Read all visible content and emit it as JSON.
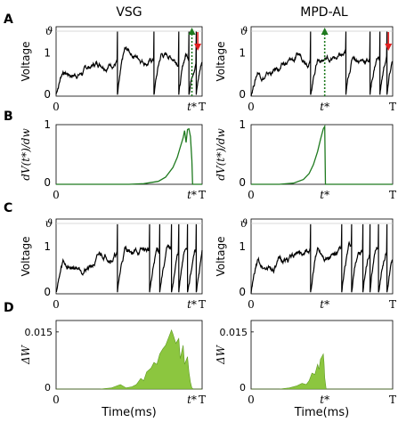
{
  "figure": {
    "column_titles": [
      "VSG",
      "MPD-AL"
    ],
    "panel_letters": [
      "A",
      "B",
      "C",
      "D"
    ],
    "colors": {
      "trace": "#000000",
      "green": "#1f7a1f",
      "fill": "#8cc63f",
      "arrow_red": "#e02020",
      "threshold_grid": "#cccccc"
    }
  },
  "chart_data": [
    {
      "id": "A-left",
      "type": "line",
      "panel": "A",
      "column": "VSG",
      "ylabel": "Voltage",
      "yticks": [
        "0",
        "1"
      ],
      "threshold_label": "ϑ",
      "xticks": [
        "0",
        "t*",
        "T"
      ],
      "xlim": [
        0,
        1
      ],
      "ylim": [
        0,
        1
      ],
      "threshold": 0.93,
      "spikes": [
        0.42,
        0.67,
        0.84,
        0.91,
        0.96
      ],
      "t_star": 0.93,
      "markers": {
        "green_arrow_at": 0.93,
        "red_arrow_at": 0.97
      }
    },
    {
      "id": "A-right",
      "type": "line",
      "panel": "A",
      "column": "MPD-AL",
      "ylabel": "Voltage",
      "yticks": [
        "0",
        "1"
      ],
      "threshold_label": "ϑ",
      "xticks": [
        "0",
        "t*",
        "T"
      ],
      "xlim": [
        0,
        1
      ],
      "ylim": [
        0,
        1
      ],
      "threshold": 0.93,
      "spikes": [
        0.42,
        0.67,
        0.84,
        0.91,
        0.96
      ],
      "t_star": 0.52,
      "markers": {
        "green_arrow_at": 0.52,
        "red_arrow_at": 0.97
      }
    },
    {
      "id": "B-left",
      "type": "line",
      "panel": "B",
      "column": "VSG",
      "ylabel": "dV(t*)/dw",
      "yticks": [
        "0",
        "1"
      ],
      "xticks": [
        "0",
        "t*",
        "T"
      ],
      "xlim": [
        0,
        1
      ],
      "ylim": [
        0,
        1
      ],
      "x": [
        0.0,
        0.5,
        0.6,
        0.7,
        0.75,
        0.8,
        0.83,
        0.85,
        0.87,
        0.88,
        0.89,
        0.9,
        0.91,
        0.92,
        0.93,
        0.935,
        1.0
      ],
      "y": [
        0.0,
        0.0,
        0.01,
        0.05,
        0.12,
        0.28,
        0.45,
        0.62,
        0.78,
        0.9,
        0.7,
        0.92,
        0.93,
        0.8,
        0.4,
        0.0,
        0.0
      ]
    },
    {
      "id": "B-right",
      "type": "line",
      "panel": "B",
      "column": "MPD-AL",
      "ylabel": "dV(t*)/dw",
      "yticks": [
        "0",
        "1"
      ],
      "xticks": [
        "0",
        "t*",
        "T"
      ],
      "xlim": [
        0,
        1
      ],
      "ylim": [
        0,
        1
      ],
      "x": [
        0.0,
        0.2,
        0.3,
        0.37,
        0.41,
        0.44,
        0.47,
        0.49,
        0.51,
        0.52,
        0.525,
        1.0
      ],
      "y": [
        0.0,
        0.0,
        0.02,
        0.08,
        0.18,
        0.33,
        0.55,
        0.75,
        0.93,
        0.97,
        0.0,
        0.0
      ]
    },
    {
      "id": "C-left",
      "type": "line",
      "panel": "C",
      "column": "VSG",
      "ylabel": "Voltage",
      "yticks": [
        "0",
        "1"
      ],
      "threshold_label": "ϑ",
      "xticks": [
        "0",
        "t*",
        "T"
      ],
      "xlim": [
        0,
        1
      ],
      "ylim": [
        0,
        1
      ],
      "threshold": 0.93,
      "spikes": [
        0.42,
        0.64,
        0.71,
        0.79,
        0.84,
        0.9,
        0.96
      ]
    },
    {
      "id": "C-right",
      "type": "line",
      "panel": "C",
      "column": "MPD-AL",
      "ylabel": "Voltage",
      "yticks": [
        "0",
        "1"
      ],
      "threshold_label": "ϑ",
      "xticks": [
        "0",
        "t*",
        "T"
      ],
      "xlim": [
        0,
        1
      ],
      "ylim": [
        0,
        1
      ],
      "threshold": 0.93,
      "spikes": [
        0.42,
        0.64,
        0.71,
        0.79,
        0.84,
        0.9,
        0.96
      ]
    },
    {
      "id": "D-left",
      "type": "area",
      "panel": "D",
      "column": "VSG",
      "ylabel": "ΔW",
      "yticks": [
        "0",
        "0.015"
      ],
      "xticks": [
        "0",
        "t*",
        "T"
      ],
      "xlabel": "Time(ms)",
      "xlim": [
        0,
        1
      ],
      "ylim": [
        0,
        0.018
      ],
      "x": [
        0.0,
        0.3,
        0.38,
        0.44,
        0.48,
        0.52,
        0.55,
        0.58,
        0.6,
        0.62,
        0.65,
        0.67,
        0.69,
        0.71,
        0.73,
        0.75,
        0.77,
        0.79,
        0.8,
        0.82,
        0.84,
        0.85,
        0.87,
        0.88,
        0.9,
        0.91,
        0.92,
        0.93,
        0.94,
        1.0
      ],
      "y": [
        0.0,
        0.0,
        0.0003,
        0.0012,
        0.0003,
        0.0006,
        0.0012,
        0.0028,
        0.0022,
        0.0045,
        0.0055,
        0.007,
        0.0065,
        0.0092,
        0.0105,
        0.0115,
        0.0135,
        0.0155,
        0.0145,
        0.012,
        0.0133,
        0.008,
        0.0115,
        0.0065,
        0.0085,
        0.0045,
        0.0018,
        0.0003,
        0.0,
        0.0
      ]
    },
    {
      "id": "D-right",
      "type": "area",
      "panel": "D",
      "column": "MPD-AL",
      "ylabel": "ΔW",
      "yticks": [
        "0",
        "0.015"
      ],
      "xticks": [
        "0",
        "t*",
        "T"
      ],
      "xlabel": "Time(ms)",
      "xlim": [
        0,
        1
      ],
      "ylim": [
        0,
        0.018
      ],
      "x": [
        0.0,
        0.2,
        0.27,
        0.32,
        0.36,
        0.39,
        0.41,
        0.43,
        0.45,
        0.47,
        0.48,
        0.49,
        0.5,
        0.51,
        0.515,
        0.52,
        0.53,
        1.0
      ],
      "y": [
        0.0,
        0.0,
        0.0003,
        0.0008,
        0.0015,
        0.0012,
        0.0022,
        0.0042,
        0.0038,
        0.0065,
        0.0052,
        0.0078,
        0.0085,
        0.0092,
        0.007,
        0.003,
        0.0,
        0.0
      ]
    }
  ]
}
